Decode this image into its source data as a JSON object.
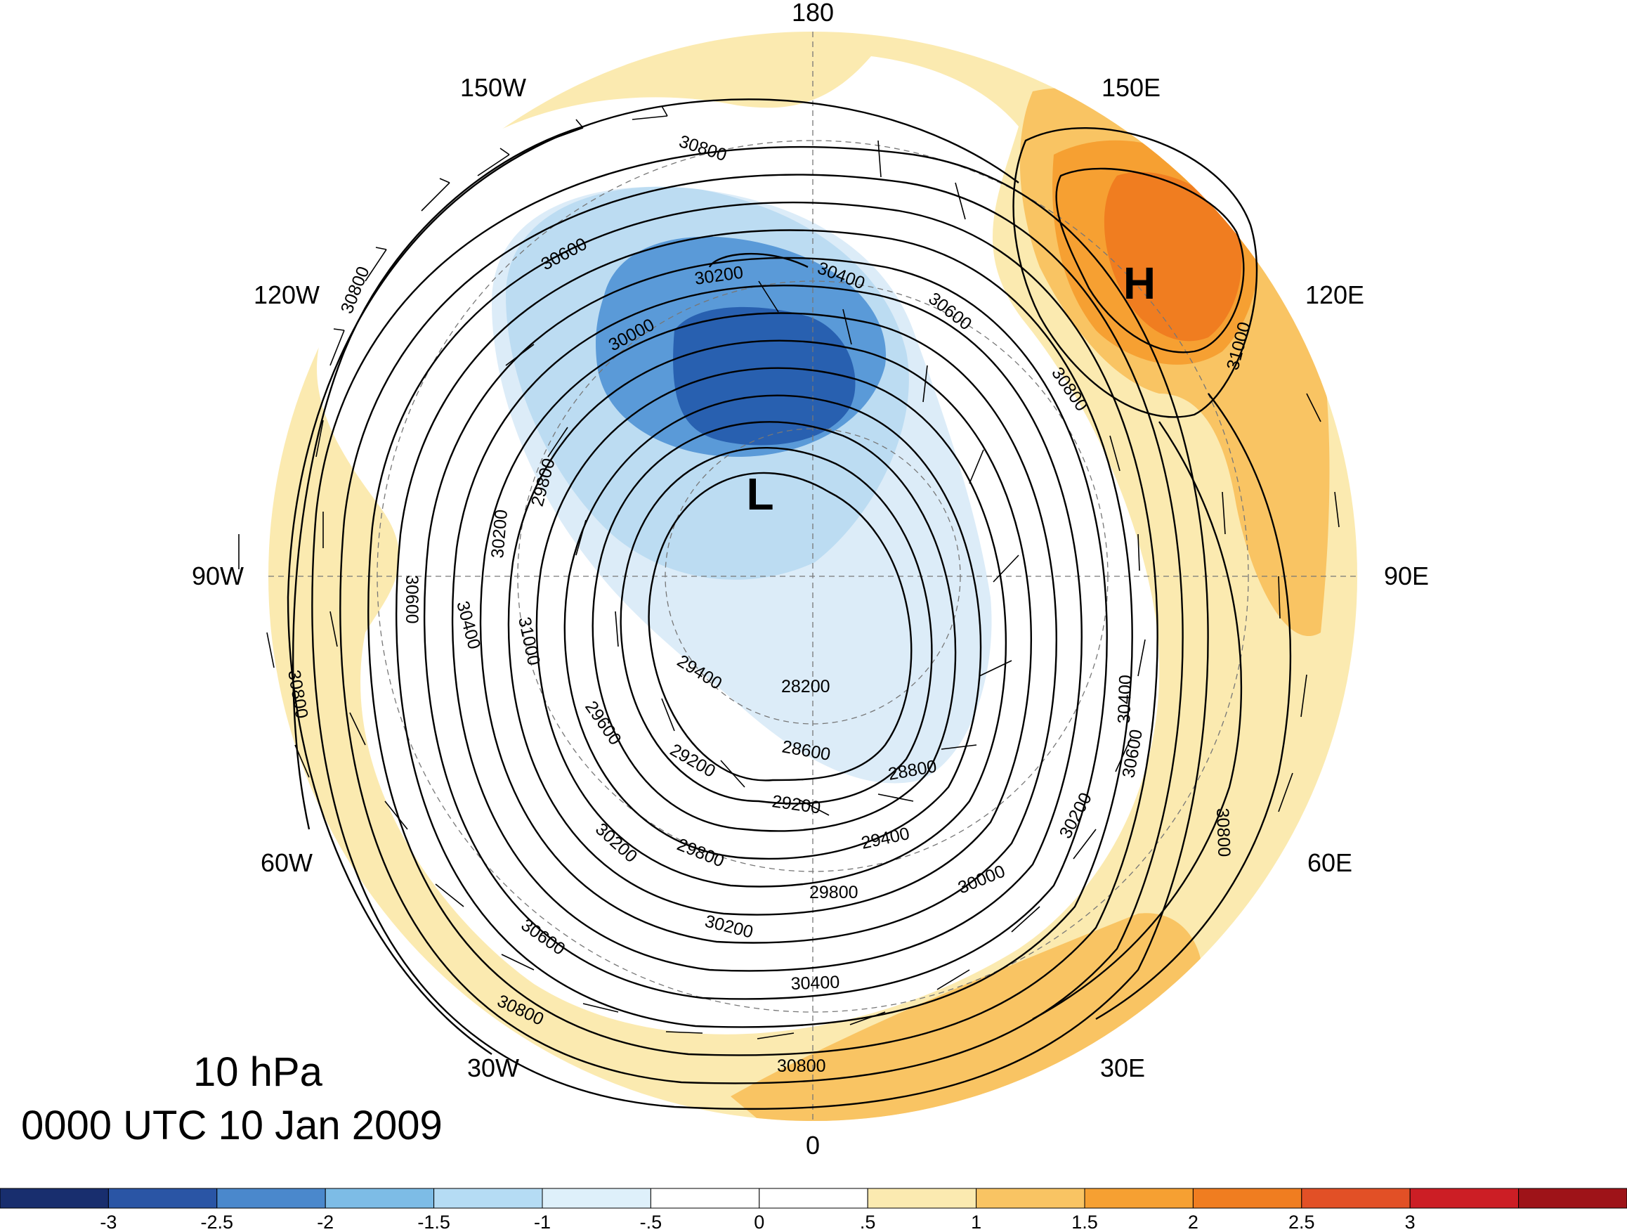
{
  "map": {
    "level": "10 hPa",
    "valid_time": "0000 UTC 10 Jan 2009",
    "longitude_labels": {
      "top": "180",
      "bottom": "0",
      "left": "90W",
      "right": "90E",
      "w150": "150W",
      "w120": "120W",
      "w60": "60W",
      "w30": "30W",
      "e150": "150E",
      "e120": "120E",
      "e60": "60E",
      "e30": "30E"
    },
    "centers": {
      "low": "L",
      "high": "H"
    },
    "contour_labels": {
      "c1": "30800",
      "c2": "30600",
      "c3": "30200",
      "c4": "30400",
      "c5": "30600",
      "c6": "30000",
      "c7": "30800",
      "c8": "31000",
      "c9": "30800",
      "c10": "29800",
      "c11": "30200",
      "c12": "30400",
      "c13": "30600",
      "c14": "31000",
      "c15": "30800",
      "c16": "29400",
      "c17": "28200",
      "c18": "29600",
      "c19": "29200",
      "c20": "28600",
      "c21": "28800",
      "c22": "29200",
      "c23": "30200",
      "c24": "29800",
      "c25": "29400",
      "c26": "29800",
      "c27": "30000",
      "c28": "30200",
      "c29": "30400",
      "c30": "30600",
      "c31": "30800",
      "c32": "30600",
      "c33": "30200",
      "c34": "30400",
      "c35": "30800",
      "c36": "30800"
    },
    "colors": {
      "blue_dark": "#2860b0",
      "blue_mid": "#5a9ad8",
      "blue_light": "#bcdcf2",
      "blue_pale": "#dcecf8",
      "orange_pale": "#fbeab0",
      "orange_light": "#f9c463",
      "orange_mid": "#f6a032",
      "orange_dark": "#f07d20"
    }
  },
  "colorbar": {
    "colors": [
      "#182e6e",
      "#2a55a5",
      "#4a88cc",
      "#7dbce6",
      "#b5dcf4",
      "#def0fa",
      "#ffffff",
      "#ffffff",
      "#fbeab0",
      "#f9c463",
      "#f6a032",
      "#f07d20",
      "#e25026",
      "#cc1e25",
      "#9e1318"
    ],
    "ticks": [
      "-3",
      "-2.5",
      "-2",
      "-1.5",
      "-1",
      "-.5",
      "0",
      ".5",
      "1",
      "1.5",
      "2",
      "2.5",
      "3"
    ]
  }
}
